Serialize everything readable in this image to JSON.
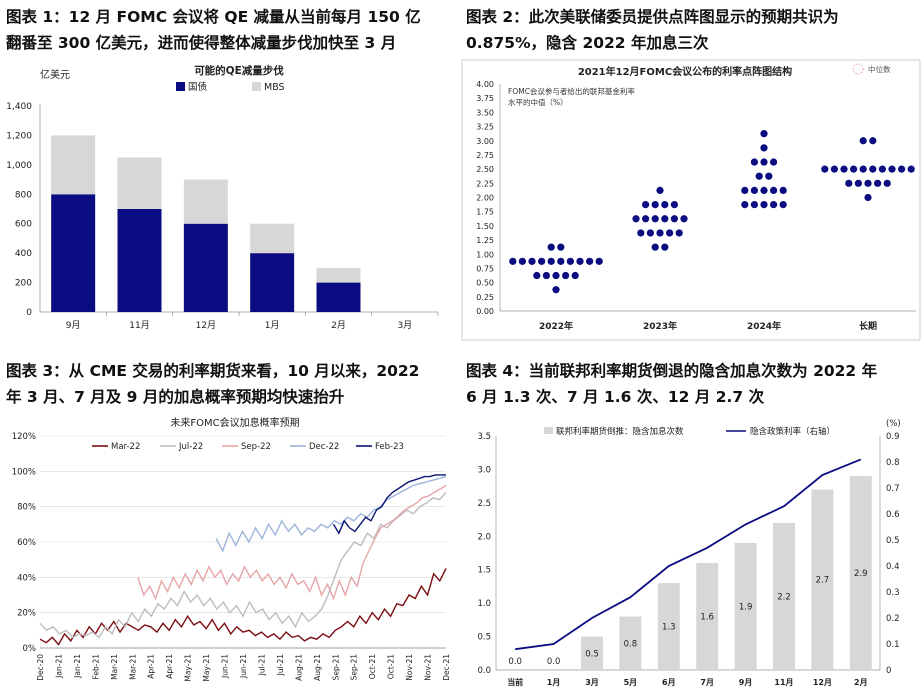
{
  "captions": {
    "c1_line1": "图表 1：12 月 FOMC 会议将 QE 减量从当前每月 150 亿",
    "c1_line2": "翻番至 300 亿美元，进而使得整体减量步伐加快至 3 月",
    "c2_line1": "图表 2：此次美联储委员提供点阵图显示的预期共识为",
    "c2_line2": "0.875%，隐含 2022 年加息三次",
    "c3_line1": "图表 3：从 CME 交易的利率期货来看，10 月以来，2022",
    "c3_line2": "年 3 月、7 月及 9 月的加息概率预期均快速抬升",
    "c4_line1": "图表 4：当前联邦利率期货倒退的隐含加息次数为 2022 年",
    "c4_line2": "6 月 1.3 次、7 月 1.6 次、12 月 2.7 次"
  },
  "colors": {
    "navy": "#0b0b82",
    "lightgray": "#d7d7d7",
    "grid": "#dadada",
    "dark": "#222222"
  },
  "chart_data": [
    {
      "type": "bar",
      "title": "可能的QE减量步伐",
      "ylabel": "亿美元",
      "categories": [
        "9月",
        "11月",
        "12月",
        "1月",
        "2月",
        "3月"
      ],
      "series": [
        {
          "name": "国债",
          "values": [
            800,
            700,
            600,
            400,
            200,
            0
          ]
        },
        {
          "name": "MBS",
          "values": [
            400,
            350,
            300,
            200,
            100,
            0
          ]
        }
      ],
      "ylim": [
        0,
        1400
      ],
      "yticks": [
        "0",
        "200",
        "400",
        "600",
        "800",
        "1,000",
        "1,200",
        "1,400"
      ],
      "legend_position": "top-center",
      "stacked": true
    },
    {
      "type": "scatter",
      "title": "2021年12月FOMC会议公布的利率点阵图结构",
      "annotation": "FOMC会议参与者给出的联邦基金利率水平的中值（%）",
      "legend": "中位数",
      "categories": [
        "2022年",
        "2023年",
        "2024年",
        "长期"
      ],
      "ylim": [
        0,
        4
      ],
      "yticks": [
        "0.00",
        "0.25",
        "0.50",
        "0.75",
        "1.00",
        "1.25",
        "1.50",
        "1.75",
        "2.00",
        "2.25",
        "2.50",
        "2.75",
        "3.00",
        "3.25",
        "3.50",
        "3.75",
        "4.00"
      ],
      "dots": [
        {
          "year": "2022年",
          "levels": [
            {
              "y": 0.375,
              "n": 1
            },
            {
              "y": 0.625,
              "n": 5
            },
            {
              "y": 0.875,
              "n": 10
            },
            {
              "y": 1.125,
              "n": 2
            }
          ]
        },
        {
          "year": "2023年",
          "levels": [
            {
              "y": 1.125,
              "n": 2
            },
            {
              "y": 1.375,
              "n": 5
            },
            {
              "y": 1.625,
              "n": 6
            },
            {
              "y": 1.875,
              "n": 4
            },
            {
              "y": 2.125,
              "n": 1
            }
          ]
        },
        {
          "year": "2024年",
          "levels": [
            {
              "y": 1.875,
              "n": 5
            },
            {
              "y": 2.125,
              "n": 5
            },
            {
              "y": 2.375,
              "n": 2
            },
            {
              "y": 2.625,
              "n": 3
            },
            {
              "y": 2.875,
              "n": 1
            },
            {
              "y": 3.125,
              "n": 1
            }
          ]
        },
        {
          "year": "长期",
          "levels": [
            {
              "y": 2.0,
              "n": 1
            },
            {
              "y": 2.25,
              "n": 5
            },
            {
              "y": 2.5,
              "n": 10
            },
            {
              "y": 3.0,
              "n": 2
            }
          ]
        }
      ],
      "medians": [
        0.875,
        1.625,
        2.125,
        2.5
      ]
    },
    {
      "type": "line",
      "title": "未来FOMC会议加息概率预期",
      "xticks": [
        "Dec-20",
        "Jan-21",
        "Jan-21",
        "Feb-21",
        "Mar-21",
        "Mar-21",
        "Apr-21",
        "Apr-21",
        "May-21",
        "May-21",
        "Jun-21",
        "Jun-21",
        "Jul-21",
        "Jul-21",
        "Aug-21",
        "Aug-21",
        "Sep-21",
        "Sep-21",
        "Oct-21",
        "Oct-21",
        "Nov-21",
        "Nov-21",
        "Dec-21"
      ],
      "ylim": [
        0,
        120
      ],
      "yticks": [
        "0%",
        "20%",
        "40%",
        "60%",
        "80%",
        "100%",
        "120%"
      ],
      "legend_position": "top",
      "series": [
        {
          "name": "Mar-22",
          "color": "#7b0d12",
          "dash": "",
          "start": 0,
          "values": [
            5,
            3,
            6,
            2,
            8,
            4,
            10,
            6,
            12,
            8,
            14,
            10,
            15,
            9,
            14,
            12,
            10,
            13,
            12,
            9,
            14,
            10,
            16,
            12,
            18,
            13,
            15,
            11,
            16,
            10,
            14,
            8,
            12,
            9,
            10,
            7,
            9,
            6,
            8,
            5,
            9,
            6,
            7,
            4,
            6,
            5,
            8,
            6,
            10,
            12,
            15,
            12,
            18,
            14,
            20,
            16,
            22,
            18,
            25,
            24,
            30,
            28,
            35,
            30,
            42,
            38,
            45
          ]
        },
        {
          "name": "Jul-22",
          "color": "#bdbdbd",
          "dash": "",
          "start": 0,
          "values": [
            14,
            10,
            12,
            8,
            10,
            6,
            8,
            7,
            9,
            6,
            12,
            8,
            16,
            12,
            20,
            15,
            22,
            18,
            25,
            22,
            28,
            24,
            32,
            26,
            30,
            24,
            28,
            22,
            26,
            20,
            24,
            18,
            26,
            20,
            22,
            16,
            20,
            14,
            18,
            12,
            20,
            15,
            18,
            22,
            30,
            40,
            50,
            55,
            60,
            58,
            65,
            62,
            70,
            68,
            72,
            75,
            78,
            76,
            80,
            82,
            85,
            84,
            88
          ]
        },
        {
          "name": "Sep-22",
          "color": "#e6a5a7",
          "dash": "",
          "start": 20,
          "values": [
            40,
            30,
            35,
            28,
            38,
            32,
            40,
            34,
            42,
            36,
            44,
            38,
            46,
            40,
            44,
            36,
            42,
            38,
            46,
            40,
            44,
            38,
            42,
            36,
            40,
            34,
            42,
            36,
            38,
            32,
            40,
            30,
            36,
            28,
            38,
            30,
            40,
            35,
            48,
            55,
            62,
            68,
            70,
            72,
            75,
            78,
            80,
            82,
            85,
            86,
            88,
            90,
            92
          ]
        },
        {
          "name": "Dec-22",
          "color": "#9cb3d9",
          "dash": "",
          "start": 36,
          "values": [
            62,
            55,
            65,
            58,
            66,
            60,
            68,
            62,
            70,
            64,
            72,
            66,
            70,
            64,
            68,
            66,
            70,
            68,
            72,
            70,
            74,
            72,
            76,
            74,
            78,
            80,
            84,
            86,
            88,
            90,
            92,
            93,
            94,
            95,
            96,
            97
          ]
        },
        {
          "name": "Feb-23",
          "color": "#0b1672",
          "dash": "",
          "start": 60,
          "values": [
            70,
            65,
            72,
            68,
            66,
            70,
            74,
            72,
            78,
            80,
            85,
            88,
            90,
            92,
            94,
            95,
            96,
            97,
            97,
            98,
            98,
            98
          ]
        }
      ]
    },
    {
      "type": "bar",
      "title": "",
      "categories": [
        "当前",
        "1月",
        "3月",
        "5月",
        "6月",
        "7月",
        "9月",
        "11月",
        "12月",
        "2月"
      ],
      "series": [
        {
          "name": "联邦利率期货倒推：隐含加息次数",
          "values": [
            0.0,
            0.0,
            0.5,
            0.8,
            1.3,
            1.6,
            1.9,
            2.2,
            2.7,
            2.9
          ],
          "labels": [
            "0.0",
            "0.0",
            "0.5",
            "0.8",
            "1.3",
            "1.6",
            "1.9",
            "2.2",
            "2.7",
            "2.9"
          ]
        },
        {
          "name": "隐含政策利率（右轴）",
          "type": "line",
          "values": [
            0.08,
            0.1,
            0.2,
            0.28,
            0.4,
            0.47,
            0.56,
            0.63,
            0.75,
            0.81
          ]
        }
      ],
      "ylim": [
        0,
        3.5
      ],
      "yticks": [
        "0.0",
        "0.5",
        "1.0",
        "1.5",
        "2.0",
        "2.5",
        "3.0",
        "3.5"
      ],
      "y2lim": [
        0,
        0.9
      ],
      "y2label": "(%)",
      "y2ticks": [
        "0",
        "0.1",
        "0.2",
        "0.3",
        "0.4",
        "0.5",
        "0.6",
        "0.7",
        "0.8",
        "0.9"
      ],
      "legend_position": "top"
    }
  ]
}
